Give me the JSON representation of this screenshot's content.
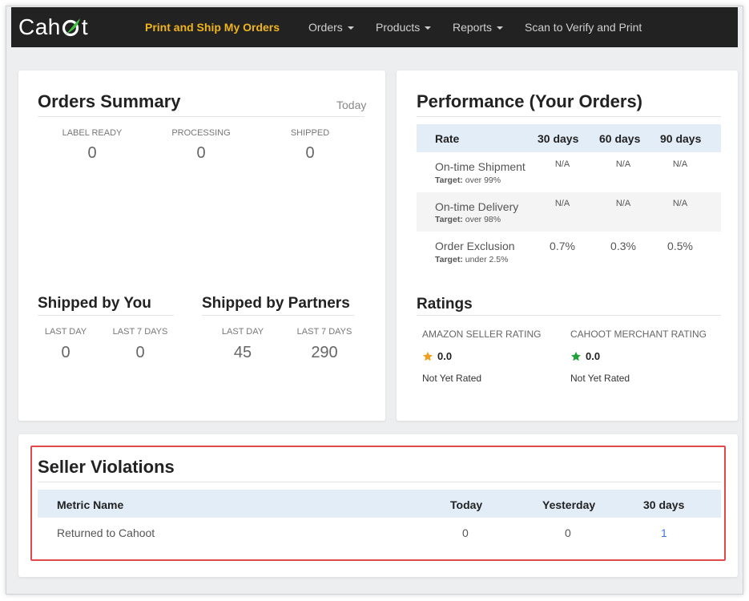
{
  "nav": {
    "logo": "Cahoot",
    "links": [
      {
        "label": "Print and Ship My Orders"
      },
      {
        "label": "Orders"
      },
      {
        "label": "Products"
      },
      {
        "label": "Reports"
      },
      {
        "label": "Scan to Verify and Print"
      }
    ]
  },
  "orders_summary": {
    "title": "Orders Summary",
    "period": "Today",
    "stats": [
      {
        "label": "LABEL READY",
        "value": "0"
      },
      {
        "label": "PROCESSING",
        "value": "0"
      },
      {
        "label": "SHIPPED",
        "value": "0"
      }
    ]
  },
  "shipped_by_you": {
    "title": "Shipped by You",
    "stats": [
      {
        "label": "LAST DAY",
        "value": "0"
      },
      {
        "label": "LAST 7 DAYS",
        "value": "0"
      }
    ]
  },
  "shipped_by_partners": {
    "title": "Shipped by Partners",
    "stats": [
      {
        "label": "LAST DAY",
        "value": "45"
      },
      {
        "label": "LAST 7 DAYS",
        "value": "290"
      }
    ]
  },
  "performance": {
    "title": "Performance (Your Orders)",
    "headers": [
      "Rate",
      "30 days",
      "60 days",
      "90 days"
    ],
    "rows": [
      {
        "metric": "On-time Shipment",
        "target_label": "Target:",
        "target": "over 99%",
        "values": [
          "N/A",
          "N/A",
          "N/A"
        ]
      },
      {
        "metric": "On-time Delivery",
        "target_label": "Target:",
        "target": "over 98%",
        "values": [
          "N/A",
          "N/A",
          "N/A"
        ]
      },
      {
        "metric": "Order Exclusion",
        "target_label": "Target:",
        "target": "under 2.5%",
        "values": [
          "0.7%",
          "0.3%",
          "0.5%"
        ]
      }
    ]
  },
  "ratings": {
    "title": "Ratings",
    "items": [
      {
        "label": "AMAZON SELLER RATING",
        "value": "0.0",
        "note": "Not Yet Rated",
        "star_color": "#f0a020"
      },
      {
        "label": "CAHOOT MERCHANT RATING",
        "value": "0.0",
        "note": "Not Yet Rated",
        "star_color": "#22a03a"
      }
    ]
  },
  "seller_violations": {
    "title": "Seller Violations",
    "headers": [
      "Metric Name",
      "Today",
      "Yesterday",
      "30 days"
    ],
    "rows": [
      {
        "metric": "Returned to Cahoot",
        "today": "0",
        "yesterday": "0",
        "days30": "1"
      }
    ]
  },
  "colors": {
    "navbar": "#222222",
    "active_nav": "#f0b51c",
    "table_header": "#e3edf8",
    "highlight": "#e04a4a",
    "link": "#3a7bd5"
  }
}
